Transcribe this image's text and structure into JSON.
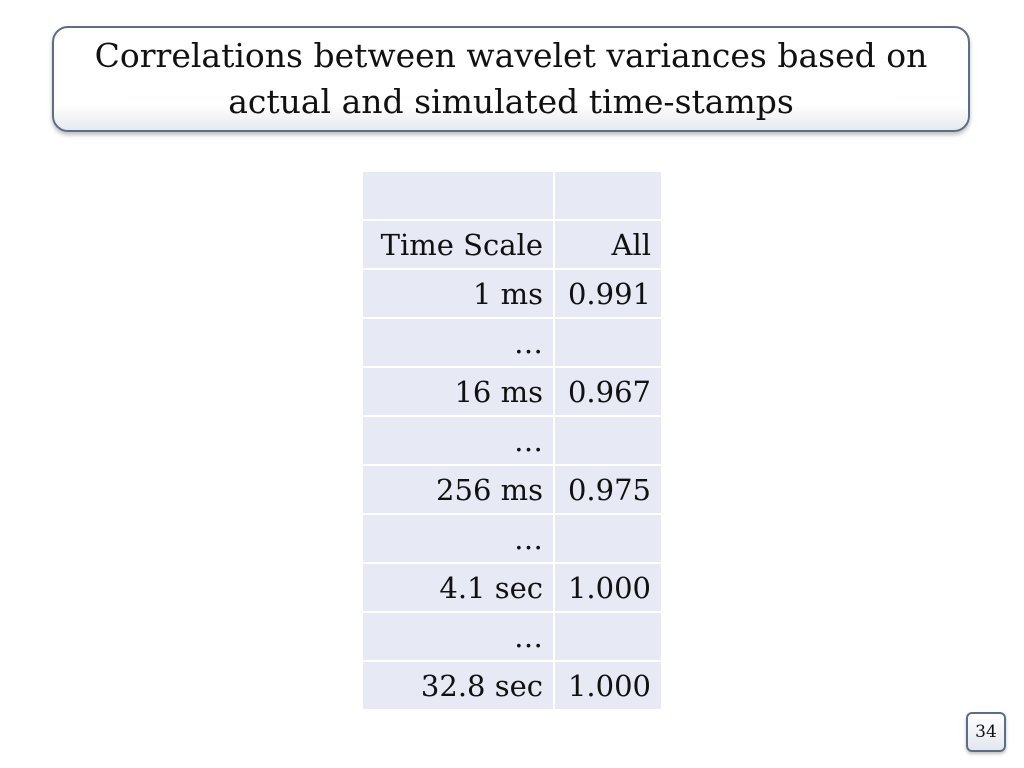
{
  "title": "Correlations between wavelet variances based on actual and simulated time-stamps",
  "table": {
    "rows": [
      {
        "scale": "",
        "all": ""
      },
      {
        "scale": "Time Scale",
        "all": "All"
      },
      {
        "scale": "1 ms",
        "all": "0.991"
      },
      {
        "scale": "…",
        "all": ""
      },
      {
        "scale": "16 ms",
        "all": "0.967"
      },
      {
        "scale": "…",
        "all": ""
      },
      {
        "scale": "256 ms",
        "all": "0.975"
      },
      {
        "scale": "…",
        "all": ""
      },
      {
        "scale": "4.1 sec",
        "all": "1.000"
      },
      {
        "scale": "…",
        "all": ""
      },
      {
        "scale": "32.8 sec",
        "all": "1.000"
      }
    ]
  },
  "slide_number": "34"
}
